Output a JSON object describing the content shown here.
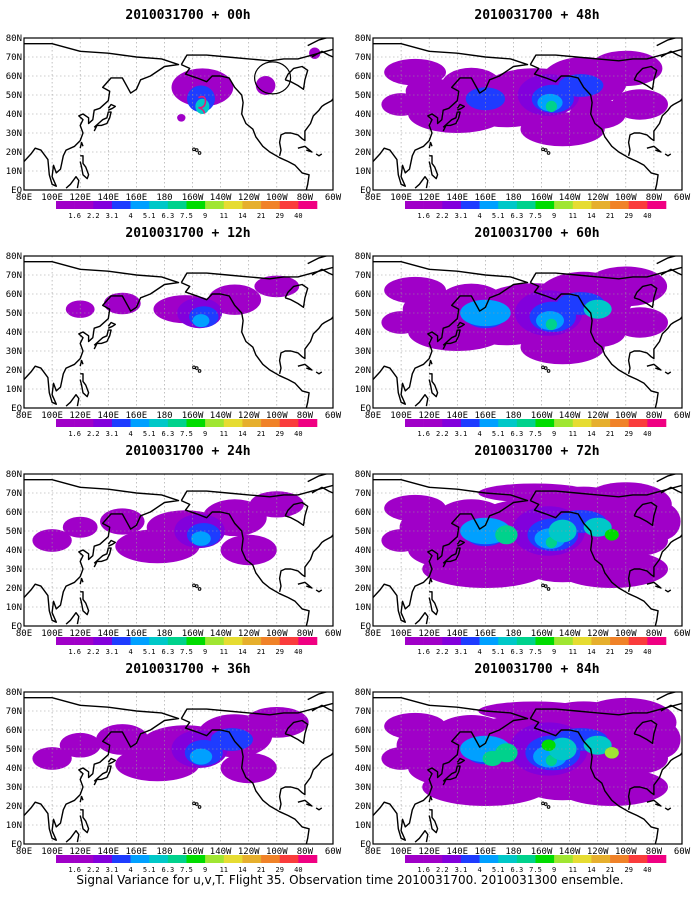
{
  "panels": [
    {
      "title": "2010031700 + 00h",
      "col": 0,
      "row": 0,
      "level": 0,
      "target_circle": true
    },
    {
      "title": "2010031700 + 12h",
      "col": 0,
      "row": 1,
      "level": 1,
      "target_circle": false
    },
    {
      "title": "2010031700 + 24h",
      "col": 0,
      "row": 2,
      "level": 2,
      "target_circle": false
    },
    {
      "title": "2010031700 + 36h",
      "col": 0,
      "row": 3,
      "level": 3,
      "target_circle": false
    },
    {
      "title": "2010031700 + 48h",
      "col": 1,
      "row": 0,
      "level": 4,
      "target_circle": false
    },
    {
      "title": "2010031700 + 60h",
      "col": 1,
      "row": 1,
      "level": 5,
      "target_circle": false
    },
    {
      "title": "2010031700 + 72h",
      "col": 1,
      "row": 2,
      "level": 6,
      "target_circle": false
    },
    {
      "title": "2010031700 + 84h",
      "col": 1,
      "row": 3,
      "level": 7,
      "target_circle": false
    }
  ],
  "axes": {
    "lat_labels": [
      "80N",
      "70N",
      "60N",
      "50N",
      "40N",
      "30N",
      "20N",
      "10N",
      "EQ"
    ],
    "lon_labels": [
      "80E",
      "100E",
      "120E",
      "140E",
      "160E",
      "180",
      "160W",
      "140W",
      "120W",
      "100W",
      "80W",
      "60W"
    ]
  },
  "colorbar": {
    "labels": [
      "1.6",
      "2.2",
      "3.1",
      "4",
      "5.1",
      "6.3",
      "7.5",
      "9",
      "11",
      "14",
      "21",
      "29",
      "40"
    ],
    "colors": [
      "#a000c8",
      "#8200dc",
      "#1e3cff",
      "#00a0ff",
      "#00c8c8",
      "#00d28c",
      "#00dc00",
      "#a0e632",
      "#e6dc32",
      "#e6af2d",
      "#f08228",
      "#fa3c3c",
      "#f00082"
    ]
  },
  "caption": "Signal Variance for u,v,T. Flight 35. Observation time 2010031700. 2010031300 ensemble."
}
